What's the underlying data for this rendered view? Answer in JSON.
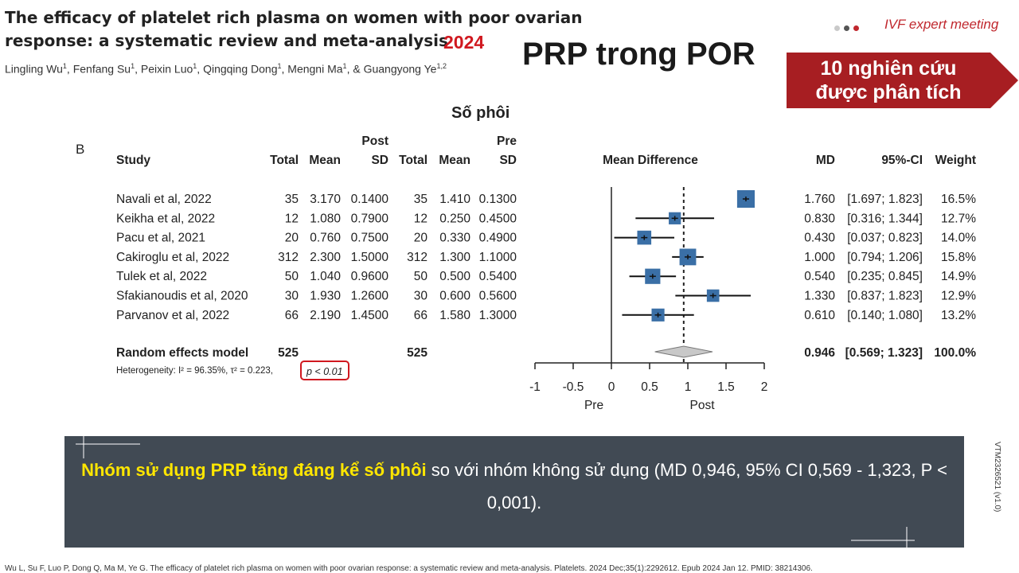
{
  "header": {
    "paper_title_line1": "The efficacy of platelet rich plasma on women with poor ovarian",
    "paper_title_line2": "response: a systematic review and meta-analysis",
    "year": "2024",
    "authors": [
      {
        "name": "Lingling Wu",
        "aff": "1"
      },
      {
        "name": "Fenfang Su",
        "aff": "1"
      },
      {
        "name": "Peixin Luo",
        "aff": "1"
      },
      {
        "name": "Qingqing Dong",
        "aff": "1"
      },
      {
        "name": "Mengni Ma",
        "aff": "1"
      },
      {
        "name": "& Guangyong Ye",
        "aff": "1,2"
      }
    ],
    "slide_title": "PRP trong POR",
    "event": "IVF expert meeting",
    "dot_colors": [
      "#c9c9c9",
      "#555555",
      "#c0272d"
    ],
    "callout_line1": "10 nghiên cứu",
    "callout_line2": "được phân tích",
    "callout_color": "#a71e22"
  },
  "chart_data": {
    "type": "forest",
    "subtitle": "Số phôi",
    "panel_label": "B",
    "group_labels": {
      "post": "Post",
      "pre": "Pre"
    },
    "columns": [
      "Study",
      "Total",
      "Mean",
      "SD",
      "Total",
      "Mean",
      "SD",
      "Mean Difference",
      "MD",
      "95%-CI",
      "Weight"
    ],
    "studies": [
      {
        "study": "Navali et al, 2022",
        "post_total": "35",
        "post_mean": "3.170",
        "post_sd": "0.1400",
        "pre_total": "35",
        "pre_mean": "1.410",
        "pre_sd": "0.1300",
        "md": 1.76,
        "lo": 1.697,
        "hi": 1.823,
        "md_text": "1.760",
        "ci_text": "[1.697; 1.823]",
        "weight": "16.5%"
      },
      {
        "study": "Keikha et al, 2022",
        "post_total": "12",
        "post_mean": "1.080",
        "post_sd": "0.7900",
        "pre_total": "12",
        "pre_mean": "0.250",
        "pre_sd": "0.4500",
        "md": 0.83,
        "lo": 0.316,
        "hi": 1.344,
        "md_text": "0.830",
        "ci_text": "[0.316; 1.344]",
        "weight": "12.7%"
      },
      {
        "study": "Pacu et al, 2021",
        "post_total": "20",
        "post_mean": "0.760",
        "post_sd": "0.7500",
        "pre_total": "20",
        "pre_mean": "0.330",
        "pre_sd": "0.4900",
        "md": 0.43,
        "lo": 0.037,
        "hi": 0.823,
        "md_text": "0.430",
        "ci_text": "[0.037; 0.823]",
        "weight": "14.0%"
      },
      {
        "study": "Cakiroglu et al, 2022",
        "post_total": "312",
        "post_mean": "2.300",
        "post_sd": "1.5000",
        "pre_total": "312",
        "pre_mean": "1.300",
        "pre_sd": "1.1000",
        "md": 1.0,
        "lo": 0.794,
        "hi": 1.206,
        "md_text": "1.000",
        "ci_text": "[0.794; 1.206]",
        "weight": "15.8%"
      },
      {
        "study": "Tulek et al, 2022",
        "post_total": "50",
        "post_mean": "1.040",
        "post_sd": "0.9600",
        "pre_total": "50",
        "pre_mean": "0.500",
        "pre_sd": "0.5400",
        "md": 0.54,
        "lo": 0.235,
        "hi": 0.845,
        "md_text": "0.540",
        "ci_text": "[0.235; 0.845]",
        "weight": "14.9%"
      },
      {
        "study": "Sfakianoudis et al, 2020",
        "post_total": "30",
        "post_mean": "1.930",
        "post_sd": "1.2600",
        "pre_total": "30",
        "pre_mean": "0.600",
        "pre_sd": "0.5600",
        "md": 1.33,
        "lo": 0.837,
        "hi": 1.823,
        "md_text": "1.330",
        "ci_text": "[0.837; 1.823]",
        "weight": "12.9%"
      },
      {
        "study": "Parvanov  et al, 2022",
        "post_total": "66",
        "post_mean": "2.190",
        "post_sd": "1.4500",
        "pre_total": "66",
        "pre_mean": "1.580",
        "pre_sd": "1.3000",
        "md": 0.61,
        "lo": 0.14,
        "hi": 1.08,
        "md_text": "0.610",
        "ci_text": "[0.140; 1.080]",
        "weight": "13.2%"
      }
    ],
    "pooled": {
      "label": "Random effects model",
      "post_total": "525",
      "pre_total": "525",
      "md": 0.946,
      "lo": 0.569,
      "hi": 1.323,
      "md_text": "0.946",
      "ci_text": "[0.569; 1.323]",
      "weight": "100.0%"
    },
    "heterogeneity": "Heterogeneity: I² = 96.35%, τ² = 0.223,",
    "p_value": "p < 0.01",
    "xlim": [
      -1,
      2
    ],
    "xticks": [
      "-1",
      "-0.5",
      "0",
      "0.5",
      "1",
      "1.5",
      "2"
    ],
    "xtick_values": [
      -1,
      -0.5,
      0,
      0.5,
      1,
      1.5,
      2
    ],
    "x_side_labels": {
      "left": "Pre",
      "right": "Post"
    },
    "marker_color": "#3a6fa6"
  },
  "summary": {
    "highlight": "Nhóm sử dụng PRP tăng đáng kể số phôi",
    "rest": " so với nhóm không sử dụng (MD 0,946, 95% CI 0,569 - 1,323, P < 0,001)."
  },
  "footer": {
    "reference": "Wu L, Su F, Luo P, Dong Q, Ma M, Ye G. The efficacy of platelet rich plasma on women with poor ovarian response: a systematic review and meta-analysis. Platelets. 2024 Dec;35(1):2292612. Epub 2024 Jan 12. PMID:  38214306.",
    "doc_code": "VTM2326521 (v1.0)"
  }
}
